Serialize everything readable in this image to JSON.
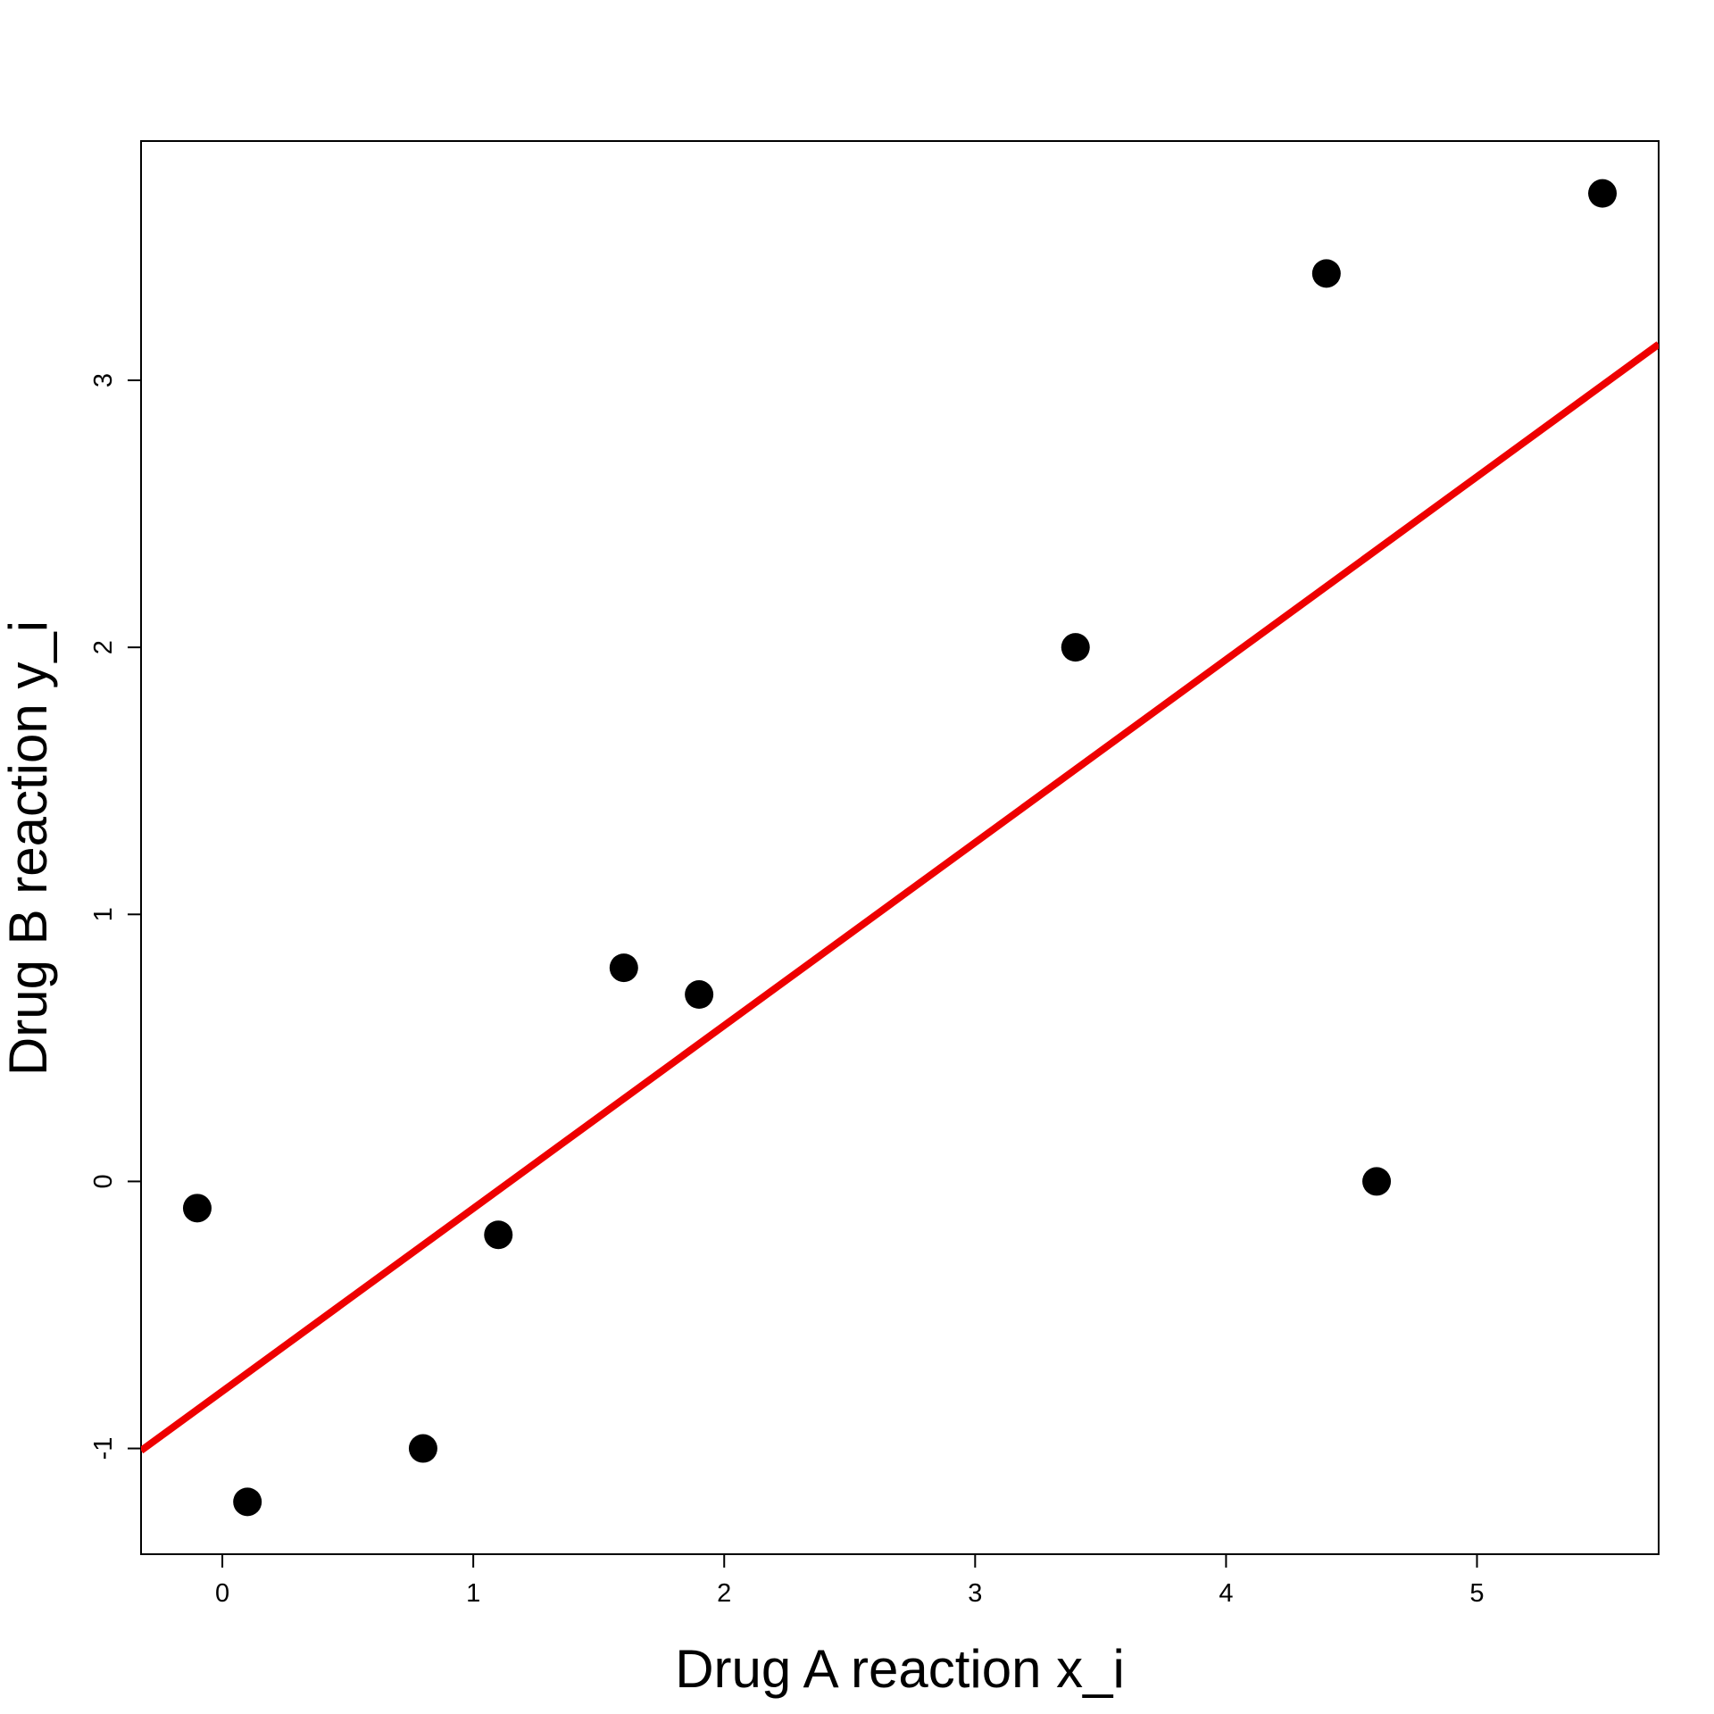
{
  "chart_data": {
    "type": "scatter",
    "x_label": "Drug A reaction x_i",
    "y_label": "Drug B reaction y_i",
    "x": [
      -0.1,
      0.1,
      0.8,
      1.1,
      1.6,
      1.9,
      3.4,
      4.4,
      4.6,
      5.5
    ],
    "values": [
      -0.1,
      -1.2,
      -1.0,
      -0.2,
      0.8,
      0.7,
      2.0,
      3.4,
      0.0,
      3.7
    ],
    "color": "#000000",
    "xlim": [
      -0.324,
      5.724
    ],
    "ylim": [
      -1.396,
      3.896
    ],
    "xticks": [
      0,
      1,
      2,
      3,
      4,
      5
    ],
    "yticks": [
      -1,
      0,
      1,
      2,
      3
    ],
    "fit_line": {
      "intercept": -0.786,
      "slope": 0.685,
      "color": "#ee0000"
    }
  }
}
